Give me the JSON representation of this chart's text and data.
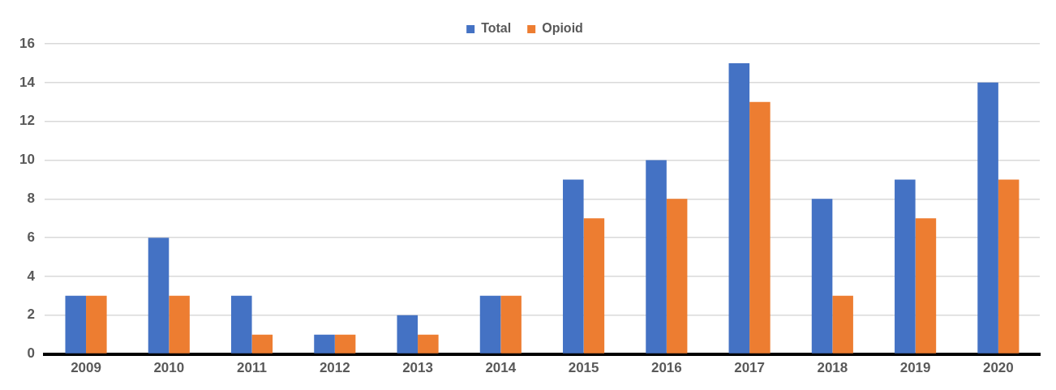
{
  "chart_data": {
    "type": "bar",
    "categories": [
      "2009",
      "2010",
      "2011",
      "2012",
      "2013",
      "2014",
      "2015",
      "2016",
      "2017",
      "2018",
      "2019",
      "2020"
    ],
    "series": [
      {
        "name": "Total",
        "color": "#4472c4",
        "values": [
          3,
          6,
          3,
          1,
          2,
          3,
          9,
          10,
          15,
          8,
          9,
          14
        ]
      },
      {
        "name": "Opioid",
        "color": "#ed7d31",
        "values": [
          3,
          3,
          1,
          1,
          1,
          3,
          7,
          8,
          13,
          3,
          7,
          9
        ]
      }
    ],
    "ylim": [
      0,
      16
    ],
    "yticks": [
      0,
      2,
      4,
      6,
      8,
      10,
      12,
      14,
      16
    ],
    "grid": "y",
    "legend": "top"
  }
}
